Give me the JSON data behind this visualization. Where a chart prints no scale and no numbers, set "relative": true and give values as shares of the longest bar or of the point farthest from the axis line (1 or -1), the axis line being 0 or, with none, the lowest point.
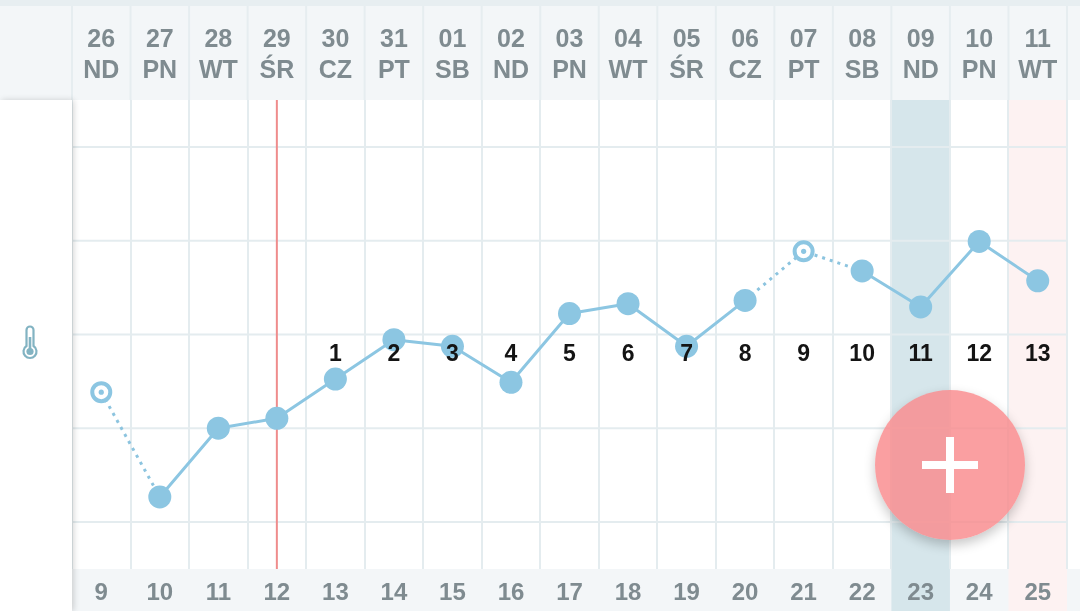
{
  "chart_data": {
    "type": "line",
    "relative": true,
    "grid": true,
    "categories": [
      "26\nND",
      "27\nPN",
      "28\nWT",
      "29\nŚR",
      "30\nCZ",
      "31\nPT",
      "01\nSB",
      "02\nND",
      "03\nPN",
      "04\nWT",
      "05\nŚR",
      "06\nCZ",
      "07\nPT",
      "08\nSB",
      "09\nND",
      "10\nPN",
      "11\nWT"
    ],
    "series": [
      {
        "color": "#8cc4df",
        "line_style": "dotted",
        "marker": "none",
        "values": [
          0.54,
          0.22,
          null,
          null,
          null,
          null,
          null,
          null,
          null,
          null,
          null,
          0.82,
          0.97,
          0.91,
          null,
          null,
          null
        ]
      },
      {
        "color": "#8cc6e2",
        "line_style": "solid",
        "marker": "circle",
        "values": [
          null,
          0.22,
          0.43,
          0.46,
          0.58,
          0.7,
          0.68,
          0.57,
          0.78,
          0.81,
          0.68,
          0.82,
          null,
          0.91,
          0.8,
          1,
          0.88
        ]
      },
      {
        "type": "scatter",
        "color": "#8cc6e2",
        "marker": "circle",
        "values": [
          0.54,
          null,
          null,
          null,
          null,
          null,
          null,
          null,
          null,
          null,
          null,
          null,
          0.97,
          null,
          null,
          null,
          null
        ]
      }
    ],
    "x2lim": [
      8.5,
      25.5
    ],
    "x2ticks": [
      9,
      10,
      11,
      12,
      13,
      14,
      15,
      16,
      17,
      18,
      19,
      20,
      21,
      22,
      23,
      24,
      25
    ],
    "ref_lines": [
      {
        "axis": "x",
        "value": "29\nŚR",
        "color": "#ef8c8c"
      }
    ],
    "bands": [
      {
        "axis": "x",
        "from": "09\nND",
        "to": "09\nND",
        "color": "#d6e6eb"
      },
      {
        "axis": "x",
        "from": "11\nWT",
        "to": "11\nWT",
        "color": "#fdf2f2"
      }
    ],
    "annotations": [
      "1",
      "2",
      "3",
      "4",
      "5",
      "6",
      "7",
      "8",
      "9",
      "10",
      "11",
      "12",
      "13"
    ]
  }
}
